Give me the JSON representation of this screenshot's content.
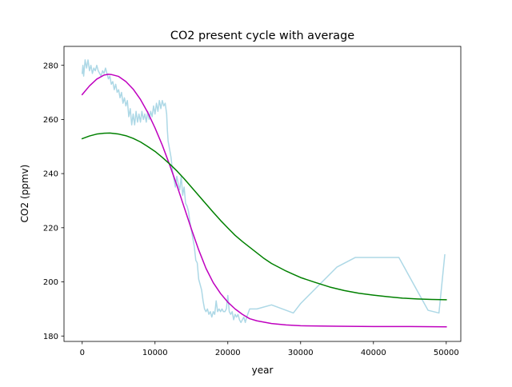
{
  "chart_data": {
    "type": "line",
    "title": "CO2 present cycle with average",
    "xlabel": "year",
    "ylabel": "CO2 (ppmv)",
    "xlim": [
      -2500,
      52000
    ],
    "ylim": [
      178,
      287
    ],
    "xticks": [
      0,
      10000,
      20000,
      30000,
      40000,
      50000
    ],
    "yticks": [
      180,
      200,
      220,
      240,
      260,
      280
    ],
    "grid": false,
    "legend": "none",
    "series": [
      {
        "color": "#add8e6",
        "points": [
          [
            0,
            277
          ],
          [
            100,
            280
          ],
          [
            200,
            276
          ],
          [
            400,
            282
          ],
          [
            600,
            279
          ],
          [
            800,
            282
          ],
          [
            1000,
            278
          ],
          [
            1200,
            280
          ],
          [
            1400,
            277
          ],
          [
            1600,
            279
          ],
          [
            1800,
            278
          ],
          [
            2000,
            280
          ],
          [
            2200,
            278
          ],
          [
            2400,
            277
          ],
          [
            2600,
            276
          ],
          [
            2800,
            278
          ],
          [
            3000,
            277
          ],
          [
            3200,
            279
          ],
          [
            3400,
            277
          ],
          [
            3600,
            275
          ],
          [
            3800,
            276
          ],
          [
            4000,
            273
          ],
          [
            4200,
            274
          ],
          [
            4400,
            271
          ],
          [
            4600,
            273
          ],
          [
            4800,
            270
          ],
          [
            5000,
            271
          ],
          [
            5200,
            268
          ],
          [
            5400,
            270
          ],
          [
            5600,
            266
          ],
          [
            5800,
            268
          ],
          [
            6000,
            265
          ],
          [
            6200,
            267
          ],
          [
            6400,
            261
          ],
          [
            6600,
            264
          ],
          [
            6800,
            258
          ],
          [
            7000,
            262
          ],
          [
            7200,
            258
          ],
          [
            7400,
            263
          ],
          [
            7600,
            259
          ],
          [
            7800,
            262
          ],
          [
            8000,
            259
          ],
          [
            8200,
            263
          ],
          [
            8400,
            260
          ],
          [
            8600,
            262
          ],
          [
            8800,
            259
          ],
          [
            9000,
            263
          ],
          [
            9200,
            260
          ],
          [
            9400,
            263
          ],
          [
            9600,
            261
          ],
          [
            9800,
            265
          ],
          [
            10000,
            262
          ],
          [
            10200,
            266
          ],
          [
            10400,
            263
          ],
          [
            10600,
            267
          ],
          [
            10800,
            264
          ],
          [
            11000,
            267
          ],
          [
            11200,
            265
          ],
          [
            11400,
            266
          ],
          [
            11600,
            262
          ],
          [
            11700,
            256
          ],
          [
            11800,
            252
          ],
          [
            12000,
            249
          ],
          [
            12200,
            246
          ],
          [
            12400,
            241
          ],
          [
            12600,
            238
          ],
          [
            12800,
            235
          ],
          [
            13000,
            239
          ],
          [
            13200,
            236
          ],
          [
            13400,
            234
          ],
          [
            13600,
            239
          ],
          [
            13800,
            232
          ],
          [
            14000,
            235
          ],
          [
            14200,
            229
          ],
          [
            14400,
            228
          ],
          [
            14600,
            226
          ],
          [
            14800,
            222
          ],
          [
            15000,
            219
          ],
          [
            15200,
            216
          ],
          [
            15400,
            213
          ],
          [
            15600,
            208
          ],
          [
            15800,
            207
          ],
          [
            16000,
            201
          ],
          [
            16200,
            199
          ],
          [
            16400,
            197
          ],
          [
            16600,
            193
          ],
          [
            16800,
            190
          ],
          [
            17000,
            189
          ],
          [
            17200,
            190
          ],
          [
            17400,
            188
          ],
          [
            17600,
            189
          ],
          [
            17800,
            187
          ],
          [
            18000,
            189
          ],
          [
            18200,
            188
          ],
          [
            18400,
            193
          ],
          [
            18600,
            189
          ],
          [
            18800,
            190
          ],
          [
            19000,
            189
          ],
          [
            19200,
            190
          ],
          [
            19400,
            189
          ],
          [
            19600,
            189
          ],
          [
            19800,
            190
          ],
          [
            20000,
            195
          ],
          [
            20200,
            189
          ],
          [
            20400,
            188
          ],
          [
            20600,
            189
          ],
          [
            20800,
            186
          ],
          [
            21000,
            188
          ],
          [
            21200,
            187
          ],
          [
            21400,
            188
          ],
          [
            21600,
            186
          ],
          [
            21800,
            185
          ],
          [
            22000,
            186
          ],
          [
            22200,
            187
          ],
          [
            22400,
            185
          ],
          [
            22600,
            187
          ],
          [
            23000,
            190
          ],
          [
            24000,
            190
          ],
          [
            26000,
            191.5
          ],
          [
            29000,
            188.5
          ],
          [
            30000,
            192
          ],
          [
            35000,
            205.5
          ],
          [
            37500,
            209
          ],
          [
            43500,
            209
          ],
          [
            47500,
            189.5
          ],
          [
            49000,
            188.5
          ],
          [
            49800,
            210
          ]
        ]
      },
      {
        "color": "#bf00bf",
        "points": [
          [
            0,
            269.2
          ],
          [
            1000,
            272.4
          ],
          [
            2000,
            274.9
          ],
          [
            3000,
            276.4
          ],
          [
            3600,
            276.7
          ],
          [
            4000,
            276.6
          ],
          [
            5000,
            275.9
          ],
          [
            6000,
            274.0
          ],
          [
            7000,
            271.2
          ],
          [
            8000,
            267.4
          ],
          [
            9000,
            262.6
          ],
          [
            10000,
            256.9
          ],
          [
            11000,
            250.5
          ],
          [
            12000,
            243.3
          ],
          [
            13000,
            235.7
          ],
          [
            14000,
            227.6
          ],
          [
            15000,
            219.5
          ],
          [
            16000,
            211.8
          ],
          [
            17000,
            205.0
          ],
          [
            18000,
            199.7
          ],
          [
            19000,
            195.7
          ],
          [
            20000,
            192.5
          ],
          [
            21000,
            190.0
          ],
          [
            22000,
            188.0
          ],
          [
            23000,
            186.4
          ],
          [
            24000,
            185.6
          ],
          [
            26000,
            184.6
          ],
          [
            28000,
            184.1
          ],
          [
            30000,
            183.8
          ],
          [
            35000,
            183.6
          ],
          [
            40000,
            183.5
          ],
          [
            45000,
            183.5
          ],
          [
            50000,
            183.4
          ]
        ]
      },
      {
        "color": "#008000",
        "points": [
          [
            0,
            252.9
          ],
          [
            1000,
            253.9
          ],
          [
            2000,
            254.6
          ],
          [
            3000,
            254.9
          ],
          [
            3800,
            255.0
          ],
          [
            5000,
            254.6
          ],
          [
            6000,
            254.0
          ],
          [
            7000,
            253.0
          ],
          [
            8000,
            251.7
          ],
          [
            9000,
            250.0
          ],
          [
            10000,
            248.2
          ],
          [
            11000,
            246.0
          ],
          [
            12000,
            243.6
          ],
          [
            13000,
            241.0
          ],
          [
            14000,
            238.1
          ],
          [
            15000,
            235.0
          ],
          [
            16000,
            231.9
          ],
          [
            17000,
            228.8
          ],
          [
            18000,
            225.7
          ],
          [
            19000,
            222.7
          ],
          [
            20000,
            219.9
          ],
          [
            21000,
            217.2
          ],
          [
            22000,
            214.9
          ],
          [
            23000,
            212.8
          ],
          [
            24000,
            210.7
          ],
          [
            25000,
            208.6
          ],
          [
            26000,
            206.8
          ],
          [
            27000,
            205.4
          ],
          [
            28000,
            204.0
          ],
          [
            29000,
            202.8
          ],
          [
            30000,
            201.6
          ],
          [
            32000,
            199.8
          ],
          [
            34000,
            198.1
          ],
          [
            36000,
            196.8
          ],
          [
            38000,
            195.8
          ],
          [
            40000,
            195.1
          ],
          [
            42000,
            194.5
          ],
          [
            44000,
            194.0
          ],
          [
            46000,
            193.7
          ],
          [
            48000,
            193.5
          ],
          [
            50000,
            193.4
          ]
        ]
      }
    ]
  }
}
